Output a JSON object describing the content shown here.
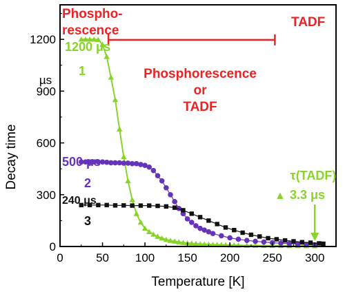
{
  "chart_data": {
    "type": "scatter",
    "xlabel": "Temperature [K]",
    "ylabel": "Decay time",
    "yunit": "µs",
    "xlim": [
      0,
      325
    ],
    "ylim": [
      0,
      1400
    ],
    "xticks": [
      0,
      50,
      100,
      150,
      200,
      250,
      300
    ],
    "yticks": [
      0,
      300,
      600,
      900,
      1200
    ],
    "grid": false,
    "colors": {
      "green": "#88d42a",
      "purple": "#6633bb",
      "black": "#111111",
      "red": "#ee2222"
    },
    "series": [
      {
        "name": "1",
        "marker": "triangle",
        "color": "#88d42a",
        "points": [
          [
            25,
            1200
          ],
          [
            30,
            1200
          ],
          [
            35,
            1200
          ],
          [
            40,
            1200
          ],
          [
            45,
            1198
          ],
          [
            50,
            1170
          ],
          [
            55,
            1100
          ],
          [
            60,
            980
          ],
          [
            65,
            850
          ],
          [
            70,
            680
          ],
          [
            75,
            520
          ],
          [
            80,
            380
          ],
          [
            85,
            270
          ],
          [
            90,
            190
          ],
          [
            95,
            140
          ],
          [
            100,
            105
          ],
          [
            105,
            85
          ],
          [
            110,
            70
          ],
          [
            115,
            58
          ],
          [
            120,
            48
          ],
          [
            125,
            40
          ],
          [
            130,
            34
          ],
          [
            135,
            30
          ],
          [
            140,
            26
          ],
          [
            145,
            22
          ],
          [
            150,
            20
          ],
          [
            155,
            18
          ],
          [
            160,
            16
          ],
          [
            165,
            14
          ],
          [
            170,
            13
          ],
          [
            175,
            12
          ],
          [
            180,
            11
          ],
          [
            185,
            10
          ],
          [
            190,
            10
          ],
          [
            195,
            9
          ],
          [
            200,
            8
          ],
          [
            205,
            8
          ],
          [
            210,
            7
          ],
          [
            220,
            6
          ],
          [
            230,
            6
          ],
          [
            240,
            5
          ],
          [
            250,
            5
          ],
          [
            260,
            5
          ],
          [
            270,
            4
          ],
          [
            280,
            4
          ],
          [
            290,
            4
          ],
          [
            300,
            3.3
          ]
        ]
      },
      {
        "name": "2",
        "marker": "circle",
        "color": "#6633bb",
        "points": [
          [
            25,
            490
          ],
          [
            30,
            490
          ],
          [
            35,
            490
          ],
          [
            40,
            490
          ],
          [
            45,
            490
          ],
          [
            50,
            490
          ],
          [
            55,
            488
          ],
          [
            60,
            485
          ],
          [
            65,
            485
          ],
          [
            70,
            485
          ],
          [
            75,
            483
          ],
          [
            80,
            483
          ],
          [
            85,
            480
          ],
          [
            90,
            480
          ],
          [
            95,
            475
          ],
          [
            100,
            470
          ],
          [
            105,
            460
          ],
          [
            110,
            440
          ],
          [
            115,
            410
          ],
          [
            120,
            380
          ],
          [
            125,
            340
          ],
          [
            130,
            300
          ],
          [
            135,
            260
          ],
          [
            140,
            220
          ],
          [
            145,
            190
          ],
          [
            150,
            160
          ],
          [
            155,
            140
          ],
          [
            160,
            120
          ],
          [
            165,
            105
          ],
          [
            170,
            95
          ],
          [
            175,
            85
          ],
          [
            180,
            75
          ],
          [
            190,
            62
          ],
          [
            200,
            50
          ],
          [
            210,
            42
          ],
          [
            220,
            35
          ],
          [
            230,
            30
          ],
          [
            240,
            26
          ],
          [
            250,
            22
          ],
          [
            260,
            19
          ],
          [
            270,
            16
          ],
          [
            280,
            14
          ],
          [
            290,
            12
          ],
          [
            300,
            10
          ]
        ]
      },
      {
        "name": "3",
        "marker": "square",
        "color": "#111111",
        "points": [
          [
            25,
            240
          ],
          [
            35,
            240
          ],
          [
            45,
            240
          ],
          [
            55,
            240
          ],
          [
            65,
            238
          ],
          [
            75,
            238
          ],
          [
            85,
            237
          ],
          [
            95,
            237
          ],
          [
            105,
            237
          ],
          [
            115,
            235
          ],
          [
            125,
            232
          ],
          [
            135,
            225
          ],
          [
            145,
            210
          ],
          [
            155,
            190
          ],
          [
            165,
            170
          ],
          [
            175,
            150
          ],
          [
            185,
            130
          ],
          [
            195,
            110
          ],
          [
            205,
            95
          ],
          [
            215,
            80
          ],
          [
            225,
            68
          ],
          [
            235,
            58
          ],
          [
            245,
            48
          ],
          [
            255,
            42
          ],
          [
            265,
            35
          ],
          [
            275,
            30
          ],
          [
            285,
            25
          ],
          [
            295,
            22
          ],
          [
            305,
            18
          ],
          [
            310,
            16
          ]
        ]
      }
    ],
    "annotations": {
      "phosphorescence": "Phospho-\nrescence",
      "tadf_top": "TADF",
      "range_label": "Phosphorescence\nor\nTADF",
      "range_x": [
        57,
        253
      ],
      "range_y": 1197,
      "s1_value": "1200 μs",
      "s1_label": "1",
      "s2_value": "500 μs",
      "s2_label": "2",
      "s3_value": "240 μs",
      "s3_label": "3",
      "tadf_callout_1": "τ(TADF)",
      "tadf_callout_2": "3.3 μs",
      "tadf_callout_marker": "▲"
    }
  }
}
